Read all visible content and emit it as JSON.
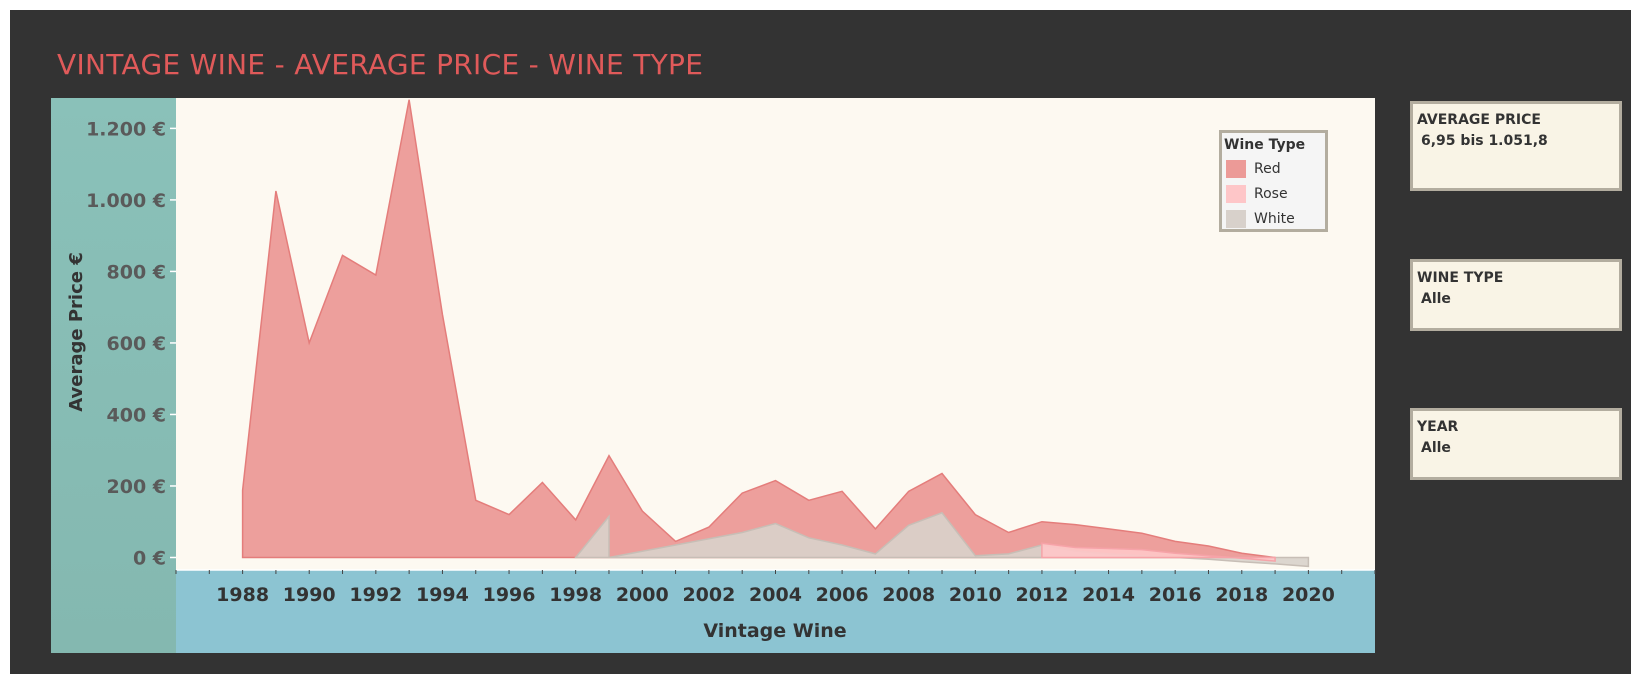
{
  "title": "VINTAGE WINE - AVERAGE PRICE - WINE TYPE",
  "chart_data": {
    "type": "area",
    "title": "VINTAGE WINE - AVERAGE PRICE - WINE TYPE",
    "xlabel": "Vintage Wine",
    "ylabel": "Average Price €",
    "xlim": [
      1986,
      2022
    ],
    "ylim": [
      -35,
      1285
    ],
    "x_ticks": [
      1988,
      1990,
      1992,
      1994,
      1996,
      1998,
      2000,
      2002,
      2004,
      2006,
      2008,
      2010,
      2012,
      2014,
      2016,
      2018,
      2020
    ],
    "y_ticks": [
      0,
      200,
      400,
      600,
      800,
      1000,
      1200
    ],
    "y_tick_labels": [
      "0 €",
      "200 €",
      "400 €",
      "600 €",
      "800 €",
      "1.000 €",
      "1.200 €"
    ],
    "legend_position": "top-right",
    "legend_title": "Wine Type",
    "series": [
      {
        "name": "Red",
        "color": "#ec9a97",
        "x": [
          1988,
          1989,
          1990,
          1991,
          1992,
          1993,
          1994,
          1995,
          1996,
          1997,
          1998,
          1999,
          2000,
          2001,
          2002,
          2003,
          2004,
          2005,
          2006,
          2007,
          2008,
          2009,
          2010,
          2011,
          2012,
          2013,
          2014,
          2015,
          2016,
          2017,
          2018,
          2019
        ],
        "values": [
          188,
          1025,
          600,
          845,
          790,
          1280,
          680,
          160,
          120,
          210,
          105,
          285,
          130,
          45,
          85,
          180,
          215,
          160,
          185,
          80,
          185,
          235,
          120,
          70,
          100,
          92,
          80,
          68,
          45,
          32,
          12,
          0
        ]
      },
      {
        "name": "Rose",
        "color": "#fec6c8",
        "x": [
          2012,
          2013,
          2014,
          2015,
          2016,
          2017,
          2018,
          2019
        ],
        "values": [
          40,
          28,
          25,
          22,
          12,
          5,
          -2,
          -10
        ]
      },
      {
        "name": "White",
        "color": "#d8d1cb",
        "x": [
          1998,
          1999,
          1999,
          2003,
          2004,
          2005,
          2006,
          2007,
          2008,
          2009,
          2010,
          2011,
          2012,
          2013,
          2014,
          2015,
          2016,
          2017,
          2018,
          2019,
          2020
        ],
        "values": [
          0,
          115,
          0,
          70,
          95,
          55,
          35,
          10,
          90,
          125,
          5,
          10,
          35,
          18,
          10,
          5,
          0,
          -5,
          -12,
          -18,
          -25
        ]
      }
    ]
  },
  "filters": [
    {
      "title": "AVERAGE PRICE",
      "value": "6,95 bis 1.051,8"
    },
    {
      "title": "WINE TYPE",
      "value": "Alle"
    },
    {
      "title": "YEAR",
      "value": "Alle"
    }
  ]
}
